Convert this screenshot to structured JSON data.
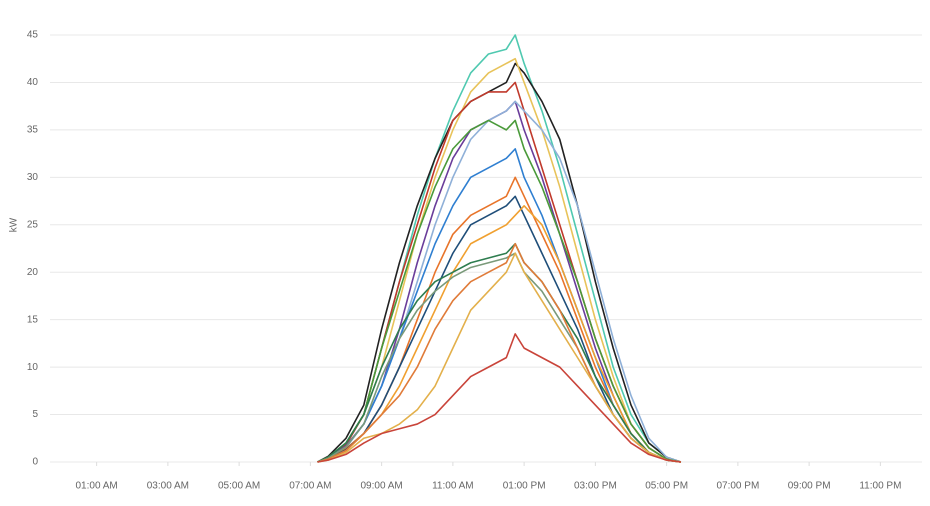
{
  "chart_data": {
    "type": "line",
    "y_label": "kW",
    "x": [
      7.2,
      7.5,
      8,
      8.5,
      9,
      9.5,
      10,
      10.5,
      11,
      11.5,
      12,
      12.5,
      12.75,
      13,
      13.5,
      14,
      14.5,
      15,
      15.5,
      16,
      16.5,
      17,
      17.4
    ],
    "xlim": [
      0,
      24
    ],
    "xticks": [
      {
        "value": 1,
        "label": "01:00 AM"
      },
      {
        "value": 3,
        "label": "03:00 AM"
      },
      {
        "value": 5,
        "label": "05:00 AM"
      },
      {
        "value": 7,
        "label": "07:00 AM"
      },
      {
        "value": 9,
        "label": "09:00 AM"
      },
      {
        "value": 11,
        "label": "11:00 AM"
      },
      {
        "value": 13,
        "label": "01:00 PM"
      },
      {
        "value": 15,
        "label": "03:00 PM"
      },
      {
        "value": 17,
        "label": "05:00 PM"
      },
      {
        "value": 19,
        "label": "07:00 PM"
      },
      {
        "value": 21,
        "label": "09:00 PM"
      },
      {
        "value": 23,
        "label": "11:00 PM"
      }
    ],
    "ylim": [
      0,
      45
    ],
    "yticks": [
      0,
      5,
      10,
      15,
      20,
      25,
      30,
      35,
      40,
      45
    ],
    "grid": true,
    "series": [
      {
        "color": "#4fc9b0",
        "values": [
          0,
          0.5,
          2,
          5,
          12,
          19,
          26,
          32,
          37,
          41,
          43,
          43.5,
          45,
          42,
          37,
          31,
          24,
          17,
          10,
          5,
          2,
          0.5,
          0
        ]
      },
      {
        "color": "#222222",
        "values": [
          0,
          0.6,
          2.5,
          6,
          14,
          21,
          27,
          32,
          36,
          38,
          39,
          40,
          42,
          41,
          38,
          34,
          27,
          19,
          12,
          6,
          2,
          0.5,
          0
        ]
      },
      {
        "color": "#e8c35a",
        "values": [
          0,
          0.5,
          2,
          5,
          10,
          17,
          24,
          30,
          35,
          39,
          41,
          42,
          42.5,
          40,
          35,
          29,
          22,
          15,
          9,
          4,
          1.5,
          0.3,
          0
        ]
      },
      {
        "color": "#c0392b",
        "values": [
          0,
          0.4,
          1.8,
          5,
          12,
          19,
          25,
          31,
          36,
          38,
          39,
          39,
          40,
          37,
          31,
          25,
          19,
          13,
          8,
          4,
          1.5,
          0.3,
          0
        ]
      },
      {
        "color": "#6a3d9a",
        "values": [
          0,
          0.4,
          1.7,
          4,
          8,
          14,
          21,
          27,
          32,
          35,
          36,
          37,
          38,
          35,
          30,
          24,
          18,
          12,
          7,
          3,
          1,
          0.2,
          0
        ]
      },
      {
        "color": "#8fb0d8",
        "values": [
          0,
          0.4,
          1.5,
          4,
          8,
          13,
          19,
          25,
          30,
          34,
          36,
          37,
          38,
          37,
          35,
          32,
          27,
          20,
          13,
          7,
          2.5,
          0.5,
          0
        ]
      },
      {
        "color": "#4a9a3a",
        "values": [
          0,
          0.5,
          2,
          5,
          12,
          18,
          24,
          29,
          33,
          35,
          36,
          35,
          36,
          33,
          29,
          24,
          19,
          13,
          8,
          4,
          1.5,
          0.3,
          0
        ]
      },
      {
        "color": "#2f7fd1",
        "values": [
          0,
          0.4,
          1.6,
          4,
          8,
          13,
          18,
          23,
          27,
          30,
          31,
          32,
          33,
          30,
          26,
          21,
          16,
          11,
          6,
          3,
          1,
          0.2,
          0
        ]
      },
      {
        "color": "#e8742a",
        "values": [
          0,
          0.3,
          1.4,
          3,
          6,
          10,
          15,
          20,
          24,
          26,
          27,
          28,
          30,
          28,
          24,
          20,
          15,
          10,
          6,
          3,
          1,
          0.2,
          0
        ]
      },
      {
        "color": "#1f4e79",
        "values": [
          0,
          0.3,
          1.3,
          3,
          6,
          10,
          14,
          18,
          22,
          25,
          26,
          27,
          28,
          26,
          22,
          18,
          14,
          9,
          5,
          2.5,
          1,
          0.2,
          0
        ]
      },
      {
        "color": "#f0a030",
        "values": [
          0,
          0.3,
          1.2,
          3,
          5,
          8,
          12,
          16,
          20,
          23,
          24,
          25,
          26,
          27,
          25,
          21,
          16,
          11,
          7,
          3,
          1,
          0.2,
          0
        ]
      },
      {
        "color": "#2e7d4f",
        "values": [
          0,
          0.5,
          2,
          5,
          10,
          14,
          17,
          19,
          20,
          21,
          21.5,
          22,
          23,
          21,
          19,
          16,
          13,
          9,
          6,
          3,
          1,
          0.2,
          0
        ]
      },
      {
        "color": "#7a9a7a",
        "values": [
          0,
          0.4,
          1.6,
          4,
          9,
          13,
          16,
          18,
          19.5,
          20.5,
          21,
          21.5,
          22,
          20,
          18,
          15,
          12,
          8,
          5,
          2.5,
          1,
          0.2,
          0
        ]
      },
      {
        "color": "#e07b39",
        "values": [
          0,
          0.3,
          1.2,
          3,
          5,
          7,
          10,
          14,
          17,
          19,
          20,
          21,
          23,
          21,
          19,
          16,
          12,
          8,
          5,
          2.5,
          1,
          0.2,
          0
        ]
      },
      {
        "color": "#e3b04b",
        "values": [
          0,
          0.2,
          1,
          2.5,
          3,
          4,
          5.5,
          8,
          12,
          16,
          18,
          20,
          22,
          20,
          17,
          14,
          11,
          8,
          5,
          2.5,
          1,
          0.2,
          0
        ]
      },
      {
        "color": "#c9443a",
        "values": [
          0,
          0.2,
          0.8,
          2,
          3,
          3.5,
          4,
          5,
          7,
          9,
          10,
          11,
          13.5,
          12,
          11,
          10,
          8,
          6,
          4,
          2,
          0.8,
          0.2,
          0
        ]
      }
    ]
  }
}
